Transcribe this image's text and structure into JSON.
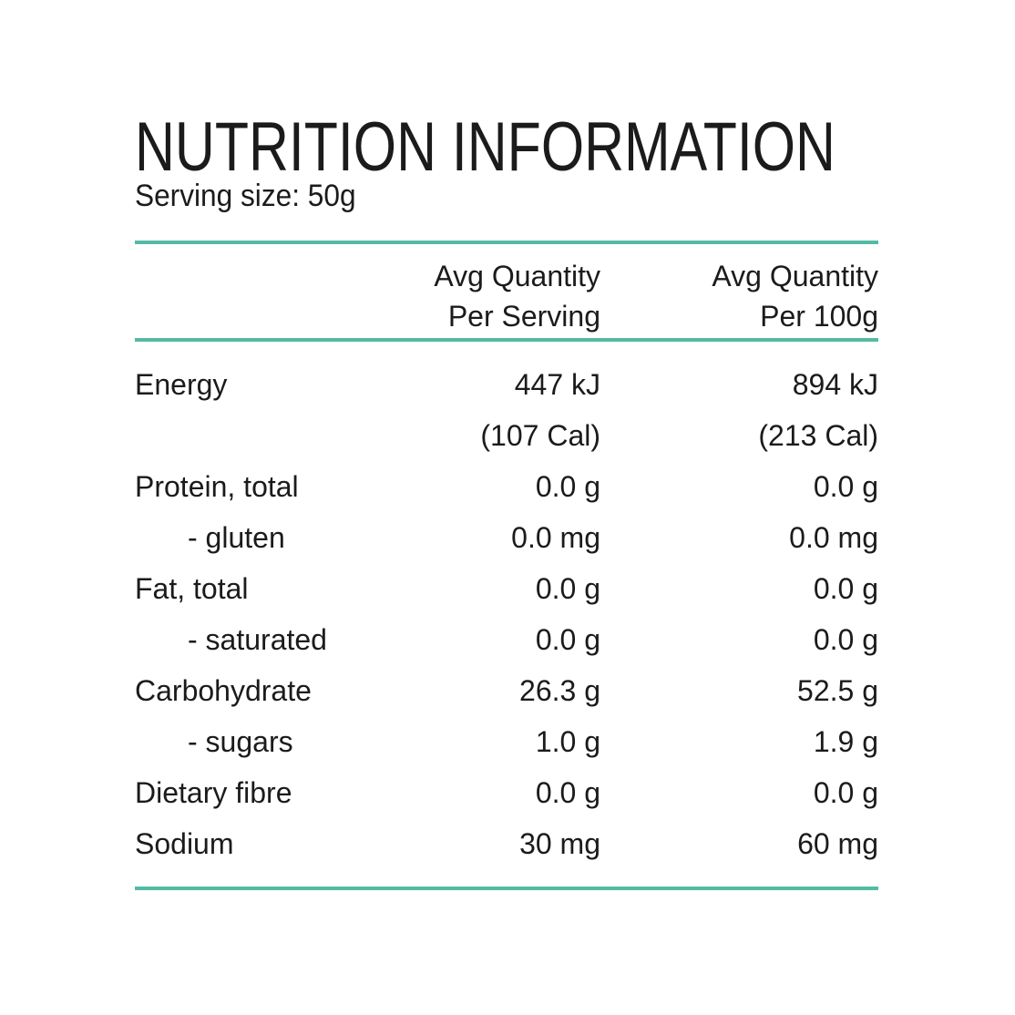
{
  "title": "NUTRITION INFORMATION",
  "serving_size": "Serving size: 50g",
  "accent_color": "#54baa4",
  "text_color": "#1b1b1b",
  "table": {
    "columns": {
      "per_serving": {
        "line1": "Avg Quantity",
        "line2": "Per Serving"
      },
      "per_100g": {
        "line1": "Avg Quantity",
        "line2": "Per 100g"
      }
    },
    "rows": [
      {
        "label": "Energy",
        "per_serving": "447 kJ",
        "per_100g": "894 kJ",
        "indent": false
      },
      {
        "label": "",
        "per_serving": "(107 Cal)",
        "per_100g": "(213 Cal)",
        "indent": false
      },
      {
        "label": "Protein, total",
        "per_serving": "0.0 g",
        "per_100g": "0.0 g",
        "indent": false
      },
      {
        "label": "- gluten",
        "per_serving": "0.0 mg",
        "per_100g": "0.0 mg",
        "indent": true
      },
      {
        "label": "Fat, total",
        "per_serving": "0.0 g",
        "per_100g": "0.0 g",
        "indent": false
      },
      {
        "label": "- saturated",
        "per_serving": "0.0 g",
        "per_100g": "0.0 g",
        "indent": true
      },
      {
        "label": "Carbohydrate",
        "per_serving": "26.3 g",
        "per_100g": "52.5 g",
        "indent": false
      },
      {
        "label": "- sugars",
        "per_serving": "1.0 g",
        "per_100g": "1.9 g",
        "indent": true
      },
      {
        "label": "Dietary fibre",
        "per_serving": "0.0 g",
        "per_100g": "0.0 g",
        "indent": false
      },
      {
        "label": "Sodium",
        "per_serving": "30 mg",
        "per_100g": "60 mg",
        "indent": false
      }
    ]
  }
}
